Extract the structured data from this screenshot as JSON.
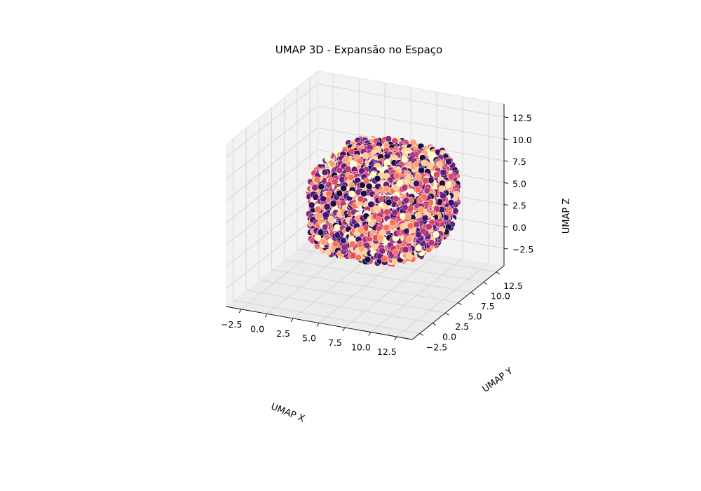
{
  "chart_data": {
    "type": "scatter",
    "projection": "3d",
    "title": "UMAP 3D - Expansão no Espaço",
    "xlabel": "UMAP X",
    "ylabel": "UMAP Y",
    "zlabel": "UMAP Z",
    "xlim": [
      -4,
      14
    ],
    "ylim": [
      -4,
      14
    ],
    "zlim": [
      -4.5,
      14
    ],
    "x_ticks": [
      "−2.5",
      "0.0",
      "2.5",
      "5.0",
      "7.5",
      "10.0",
      "12.5"
    ],
    "y_ticks": [
      "−2.5",
      "0.0",
      "2.5",
      "5.0",
      "7.5",
      "10.0",
      "12.5"
    ],
    "z_ticks": [
      "−2.5",
      "0.0",
      "2.5",
      "5.0",
      "7.5",
      "10.0",
      "12.5"
    ],
    "grid": true,
    "colormap": "magma",
    "colors": [
      "#1b0c41",
      "#3b0f70",
      "#641a80",
      "#8c2981",
      "#b73779",
      "#de4968",
      "#f7705c",
      "#fe9f6d",
      "#fecf92",
      "#fcfdbf"
    ],
    "description_shape": "rounded barrel-shaped cloud of points spanning roughly x 0.5–12, y 0–12, z −2 to 12.5",
    "point_cloud": {
      "center": [
        6.25,
        6.0,
        5.0
      ],
      "radius": [
        5.5,
        5.75,
        7.2
      ],
      "count": 2600
    }
  }
}
